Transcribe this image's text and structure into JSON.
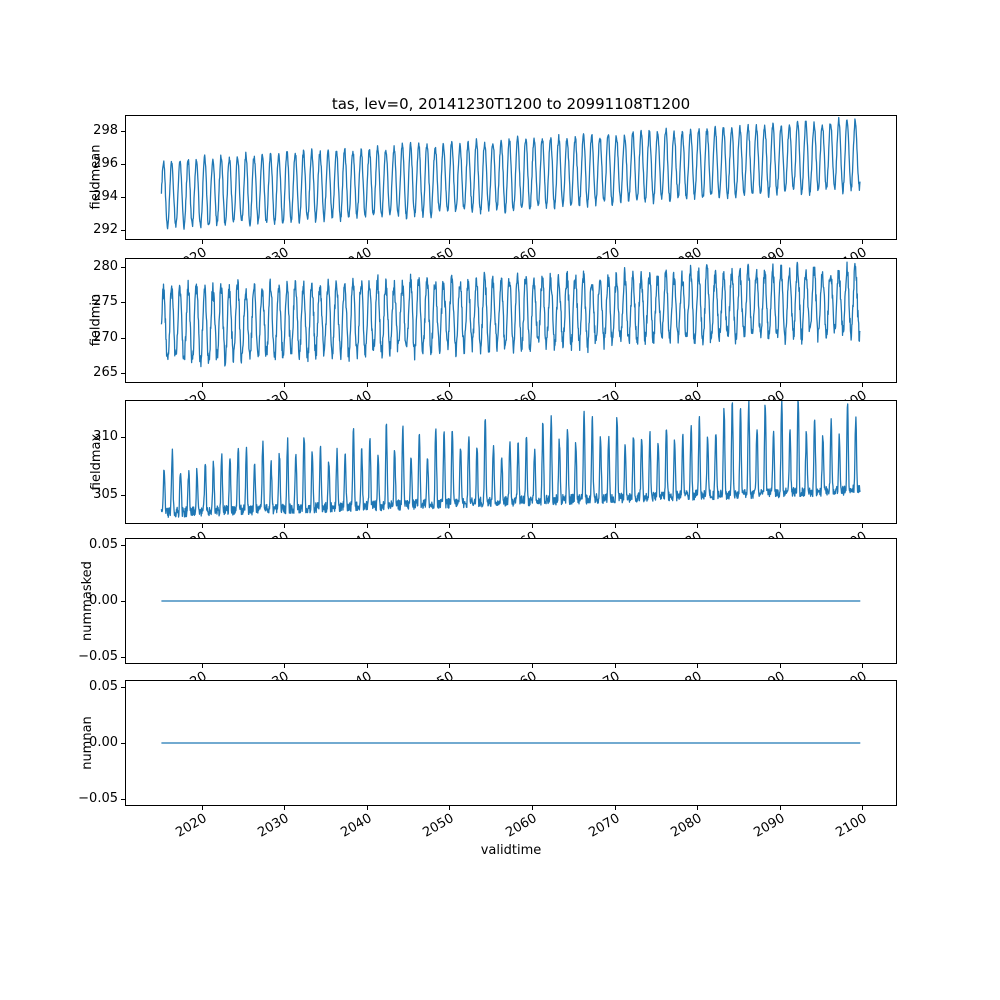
{
  "figure": {
    "title": "tas, lev=0, 20141230T1200 to 20991108T1200",
    "xlabel": "validtime",
    "background": "#ffffff",
    "line_color": "#1f77b4"
  },
  "x_axis": {
    "xlim": [
      2010.7,
      2104.2
    ],
    "tick_values": [
      2020,
      2030,
      2040,
      2050,
      2060,
      2070,
      2080,
      2090,
      2100
    ],
    "tick_labels": [
      "2020",
      "2030",
      "2040",
      "2050",
      "2060",
      "2070",
      "2080",
      "2090",
      "2100"
    ],
    "data_start": 2015.0,
    "data_end": 2099.87
  },
  "chart_data": [
    {
      "type": "line",
      "ylabel": "fieldmean",
      "ylim": [
        291.4,
        298.95
      ],
      "ytick_values": [
        292,
        294,
        296,
        298
      ],
      "ytick_labels": [
        "292",
        "294",
        "296",
        "298"
      ],
      "grid": false,
      "legend": false,
      "description": "Annual cycle oscillating between about 292 and 296.3 in 2015, rising steadily to between about 294.4 and 299 by 2100",
      "series": [
        {
          "name": "fieldmean",
          "kind": "seasonal",
          "x_start": 2015.0,
          "x_end": 2099.87,
          "samples_per_year": 24,
          "base_start": 294.1,
          "base_end": 296.6,
          "amp_start": 2.05,
          "amp_end": 2.1,
          "noise": 0.2,
          "year_jitter": 0.06,
          "seed": 11
        }
      ]
    },
    {
      "type": "line",
      "ylabel": "fieldmin",
      "ylim": [
        263.6,
        281.3
      ],
      "ytick_values": [
        265,
        270,
        275,
        280
      ],
      "ytick_labels": [
        "265",
        "270",
        "275",
        "280"
      ],
      "grid": false,
      "legend": false,
      "description": "Noisy annual cycle between about 266 and 277.5 in 2015, rising to about 271 to 280 by 2100, with an occasional dip near 264.7",
      "series": [
        {
          "name": "fieldmin",
          "kind": "seasonal",
          "x_start": 2015.0,
          "x_end": 2099.87,
          "samples_per_year": 24,
          "base_start": 271.8,
          "base_end": 275.3,
          "amp_start": 5.2,
          "amp_end": 4.5,
          "noise": 1.1,
          "year_jitter": 0.1,
          "seed": 23
        }
      ]
    },
    {
      "type": "line",
      "ylabel": "fieldmax",
      "ylim": [
        302.5,
        313.2
      ],
      "ytick_values": [
        305,
        310
      ],
      "ytick_labels": [
        "305",
        "310"
      ],
      "grid": false,
      "legend": false,
      "description": "Spiky series: baseline near 303-305 with narrow yearly spikes reaching roughly 308-311 early in the record and up to about 313 near 2085",
      "series": [
        {
          "name": "fieldmax",
          "kind": "spiky",
          "x_start": 2015.0,
          "x_end": 2099.87,
          "samples_per_year": 24,
          "base_start": 303.4,
          "base_end": 305.4,
          "amp_start": 4.8,
          "amp_end": 6.6,
          "power": 3,
          "noise": 0.45,
          "year_jitter": 0.3,
          "seed": 37
        }
      ]
    },
    {
      "type": "line",
      "ylabel": "nummasked",
      "ylim": [
        -0.0563,
        0.0563
      ],
      "ytick_values": [
        -0.05,
        0,
        0.05
      ],
      "ytick_labels": [
        "−0.05",
        "0.00",
        "0.05"
      ],
      "grid": false,
      "legend": false,
      "description": "Constant 0.00 across the entire period 2015-2100",
      "series": [
        {
          "name": "nummasked",
          "kind": "constant",
          "value": 0,
          "x_start": 2015.0,
          "x_end": 2099.87
        }
      ]
    },
    {
      "type": "line",
      "ylabel": "numnan",
      "ylim": [
        -0.0563,
        0.0563
      ],
      "ytick_values": [
        -0.05,
        0,
        0.05
      ],
      "ytick_labels": [
        "−0.05",
        "0.00",
        "0.05"
      ],
      "grid": false,
      "legend": false,
      "description": "Constant 0.00 across the entire period 2015-2100",
      "series": [
        {
          "name": "numnan",
          "kind": "constant",
          "value": 0,
          "x_start": 2015.0,
          "x_end": 2099.87
        }
      ]
    }
  ]
}
